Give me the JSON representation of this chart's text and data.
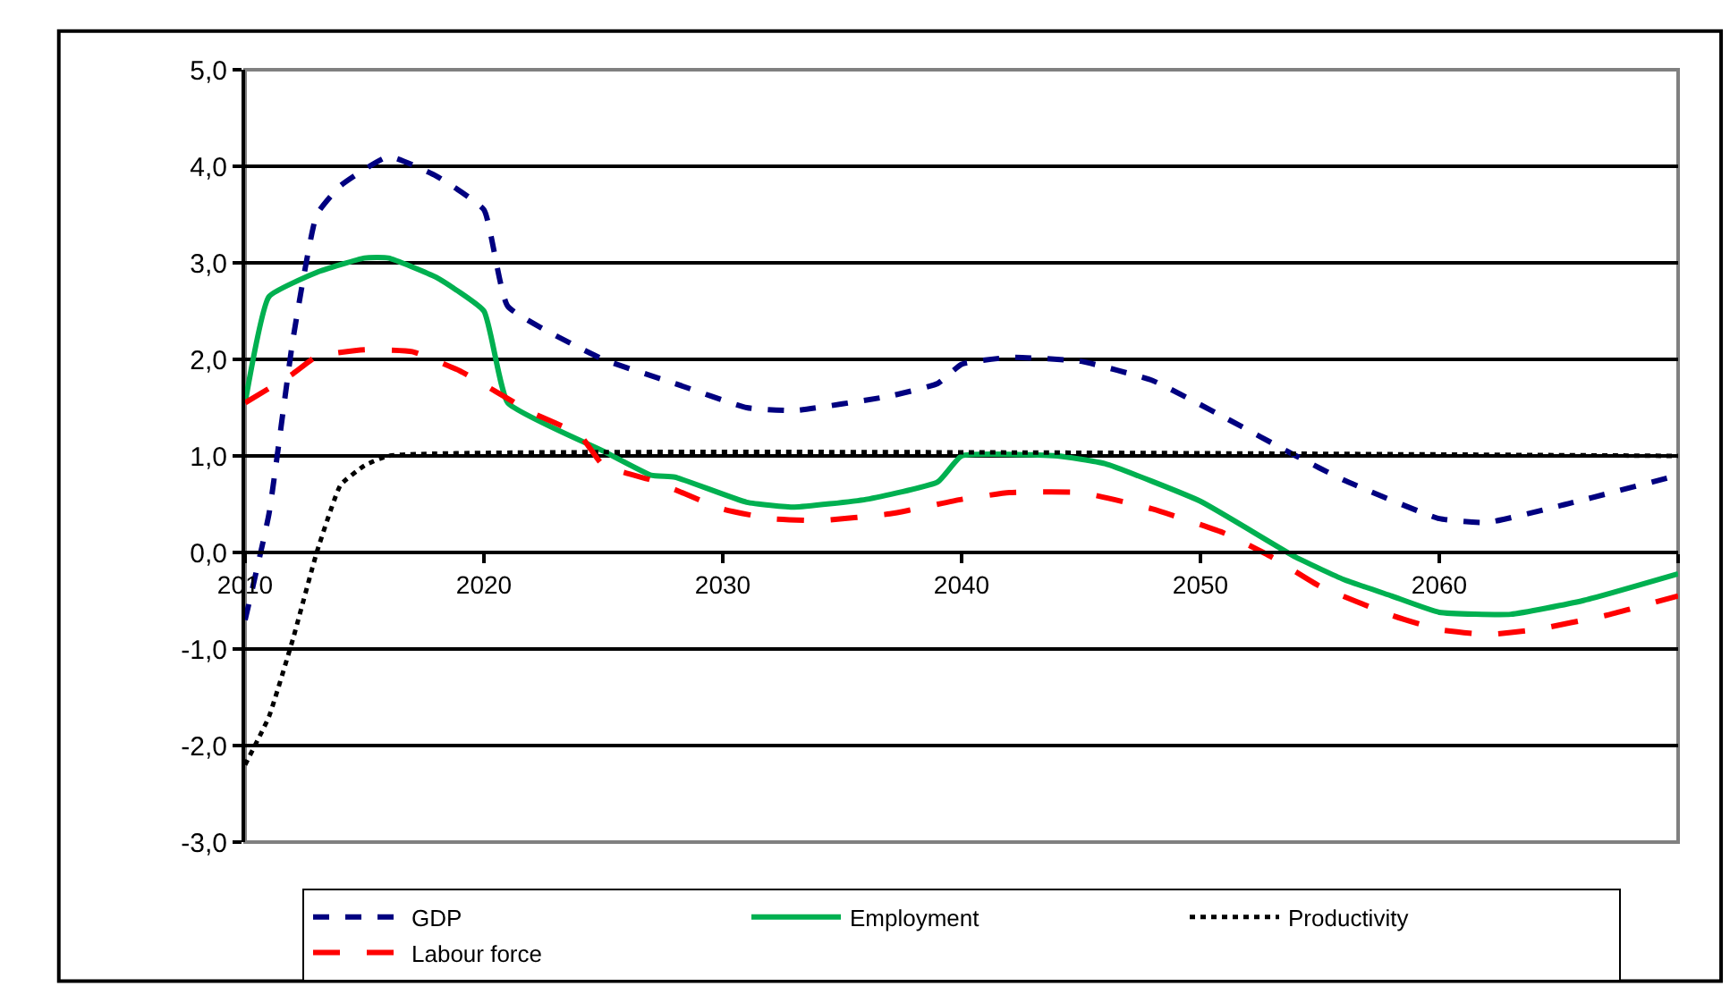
{
  "chart_data": {
    "type": "line",
    "xlim": [
      2010,
      2070
    ],
    "xticks": [
      2010,
      2020,
      2030,
      2040,
      2050,
      2060,
      {
        "value": 2070,
        "label": null
      }
    ],
    "ylim": [
      -3,
      5
    ],
    "yticks": [
      {
        "value": -3,
        "label": "-3,0"
      },
      {
        "value": -2,
        "label": "-2,0"
      },
      {
        "value": -1,
        "label": "-1,0"
      },
      {
        "value": 0,
        "label": "0,0"
      },
      {
        "value": 1,
        "label": "1,0"
      },
      {
        "value": 2,
        "label": "2,0"
      },
      {
        "value": 3,
        "label": "3,0"
      },
      {
        "value": 4,
        "label": "4,0"
      },
      {
        "value": 5,
        "label": "5,0"
      }
    ],
    "grid": "y",
    "legend": "bottom",
    "marker": "none",
    "series": [
      {
        "name": "GDP",
        "color": "#000080",
        "line_style": "dashed",
        "x": [
          2010,
          2011,
          2012,
          2013,
          2014,
          2016,
          2018,
          2020,
          2021,
          2025,
          2028,
          2031,
          2033,
          2037,
          2039,
          2040,
          2042,
          2045,
          2048,
          2051,
          2054,
          2056,
          2060,
          2062,
          2065,
          2070
        ],
        "values": [
          -0.7,
          0.4,
          2.2,
          3.5,
          3.8,
          4.1,
          3.9,
          3.55,
          2.55,
          2.0,
          1.75,
          1.5,
          1.47,
          1.62,
          1.75,
          1.95,
          2.02,
          1.98,
          1.78,
          1.4,
          1.0,
          0.75,
          0.35,
          0.31,
          0.48,
          0.8
        ]
      },
      {
        "name": "Employment",
        "color": "#00b050",
        "line_style": "solid",
        "x": [
          2010,
          2011,
          2013,
          2015,
          2016,
          2018,
          2020,
          2021,
          2025,
          2027,
          2028,
          2031,
          2033,
          2036,
          2039,
          2040,
          2044,
          2046,
          2050,
          2054,
          2056,
          2058,
          2060,
          2063,
          2066,
          2070
        ],
        "values": [
          1.55,
          2.65,
          2.9,
          3.05,
          3.05,
          2.85,
          2.5,
          1.55,
          1.05,
          0.8,
          0.78,
          0.52,
          0.47,
          0.55,
          0.73,
          1.0,
          1.0,
          0.92,
          0.53,
          -0.05,
          -0.28,
          -0.45,
          -0.62,
          -0.64,
          -0.5,
          -0.22
        ]
      },
      {
        "name": "Productivity",
        "color": "#000000",
        "line_style": "dotted",
        "x": [
          2010,
          2011,
          2012,
          2013,
          2014,
          2015,
          2016,
          2070
        ],
        "values": [
          -2.2,
          -1.7,
          -0.9,
          0.0,
          0.7,
          0.9,
          1.0,
          1.0
        ]
      },
      {
        "name": "Labour force",
        "color": "#ff0000",
        "line_style": "longdash",
        "x": [
          2010,
          2012,
          2013,
          2015,
          2017,
          2019,
          2022,
          2024,
          2025,
          2027,
          2028,
          2030,
          2032,
          2034,
          2037,
          2040,
          2042,
          2045,
          2048,
          2051,
          2053,
          2055,
          2058,
          2060,
          2062,
          2064,
          2067,
          2070
        ],
        "values": [
          1.55,
          1.85,
          2.03,
          2.1,
          2.08,
          1.88,
          1.45,
          1.22,
          0.9,
          0.75,
          0.65,
          0.45,
          0.35,
          0.33,
          0.4,
          0.55,
          0.62,
          0.62,
          0.45,
          0.2,
          -0.05,
          -0.35,
          -0.65,
          -0.8,
          -0.85,
          -0.8,
          -0.65,
          -0.45
        ]
      }
    ]
  }
}
